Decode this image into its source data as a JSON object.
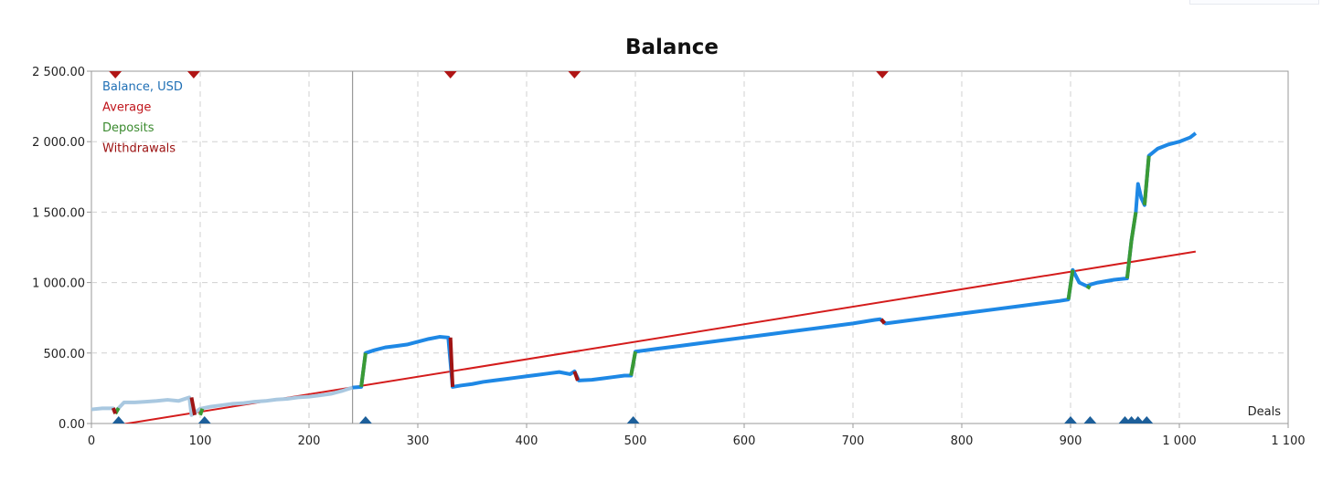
{
  "chart_data": {
    "type": "line",
    "title": "Balance",
    "xlabel": "Deals",
    "ylabel": "",
    "xlim": [
      0,
      1100
    ],
    "ylim": [
      0,
      2500
    ],
    "x_ticks": [
      0,
      100,
      200,
      300,
      400,
      500,
      600,
      700,
      800,
      900,
      1000,
      1100
    ],
    "x_tick_labels": [
      "0",
      "100",
      "200",
      "300",
      "400",
      "500",
      "600",
      "700",
      "800",
      "900",
      "1 000",
      "1 100"
    ],
    "y_ticks": [
      0,
      500,
      1000,
      1500,
      2000,
      2500
    ],
    "y_tick_labels": [
      "0.00",
      "500.00",
      "1 000.00",
      "1 500.00",
      "2 000.00",
      "2 500.00"
    ],
    "grid": true,
    "legend_position": "top-left",
    "legend": [
      {
        "label": "Balance, USD",
        "color": "#1f6fb5"
      },
      {
        "label": "Average",
        "color": "#c0161c"
      },
      {
        "label": "Deposits",
        "color": "#3a8a2e"
      },
      {
        "label": "Withdrawals",
        "color": "#9b1010"
      }
    ],
    "cursor_x": 240,
    "series": [
      {
        "name": "Balance, USD",
        "color": "#1e88e5",
        "faded_color": "#a9c8e0",
        "faded_until_x": 240,
        "x": [
          0,
          10,
          20,
          22,
          30,
          40,
          50,
          60,
          70,
          80,
          90,
          92,
          100,
          110,
          120,
          130,
          140,
          150,
          160,
          170,
          180,
          190,
          200,
          210,
          220,
          230,
          240,
          248,
          252,
          260,
          270,
          280,
          290,
          300,
          310,
          320,
          328,
          332,
          340,
          350,
          360,
          370,
          380,
          390,
          400,
          410,
          420,
          430,
          440,
          444,
          448,
          460,
          470,
          480,
          490,
          496,
          500,
          520,
          540,
          560,
          580,
          600,
          620,
          640,
          660,
          680,
          700,
          720,
          725,
          730,
          750,
          770,
          790,
          810,
          830,
          850,
          870,
          890,
          898,
          902,
          908,
          915,
          920,
          925,
          940,
          952,
          956,
          960,
          962,
          965,
          968,
          972,
          980,
          990,
          1000,
          1010,
          1015
        ],
        "y": [
          100,
          108,
          108,
          85,
          150,
          150,
          155,
          160,
          168,
          160,
          185,
          60,
          105,
          120,
          130,
          140,
          145,
          155,
          160,
          170,
          175,
          185,
          190,
          200,
          210,
          230,
          255,
          260,
          500,
          520,
          540,
          550,
          560,
          580,
          600,
          615,
          610,
          260,
          270,
          280,
          295,
          305,
          315,
          325,
          335,
          345,
          355,
          365,
          350,
          370,
          305,
          310,
          320,
          330,
          340,
          340,
          510,
          530,
          550,
          570,
          590,
          610,
          630,
          650,
          670,
          690,
          710,
          735,
          740,
          710,
          730,
          750,
          770,
          790,
          810,
          830,
          850,
          870,
          880,
          1090,
          1000,
          975,
          990,
          1000,
          1020,
          1030,
          1300,
          1500,
          1700,
          1600,
          1550,
          1900,
          1950,
          1980,
          2000,
          2030,
          2060
        ]
      },
      {
        "name": "Average",
        "color": "#d41c1c",
        "x": [
          25,
          1015
        ],
        "y": [
          -10,
          1220
        ]
      }
    ],
    "deposits": [
      {
        "x0": 22,
        "y0": 70,
        "x1": 25,
        "y1": 110
      },
      {
        "x0": 100,
        "y0": 60,
        "x1": 102,
        "y1": 105
      },
      {
        "x0": 248,
        "y0": 260,
        "x1": 252,
        "y1": 500
      },
      {
        "x0": 496,
        "y0": 340,
        "x1": 500,
        "y1": 510
      },
      {
        "x0": 898,
        "y0": 880,
        "x1": 902,
        "y1": 1090
      },
      {
        "x0": 915,
        "y0": 975,
        "x1": 918,
        "y1": 960
      },
      {
        "x0": 952,
        "y0": 1030,
        "x1": 956,
        "y1": 1300
      },
      {
        "x0": 956,
        "y0": 1300,
        "x1": 960,
        "y1": 1500
      },
      {
        "x0": 968,
        "y0": 1550,
        "x1": 972,
        "y1": 1900
      }
    ],
    "withdrawals": [
      {
        "x0": 20,
        "y0": 110,
        "x1": 22,
        "y1": 70
      },
      {
        "x0": 92,
        "y0": 185,
        "x1": 95,
        "y1": 60
      },
      {
        "x0": 330,
        "y0": 610,
        "x1": 332,
        "y1": 260
      },
      {
        "x0": 444,
        "y0": 370,
        "x1": 447,
        "y1": 305
      },
      {
        "x0": 726,
        "y0": 740,
        "x1": 729,
        "y1": 710
      }
    ],
    "top_markers_x": [
      22,
      94,
      330,
      444,
      727
    ],
    "bottom_markers_x": [
      25,
      104,
      252,
      498,
      900,
      918,
      950,
      956,
      962,
      970
    ]
  }
}
